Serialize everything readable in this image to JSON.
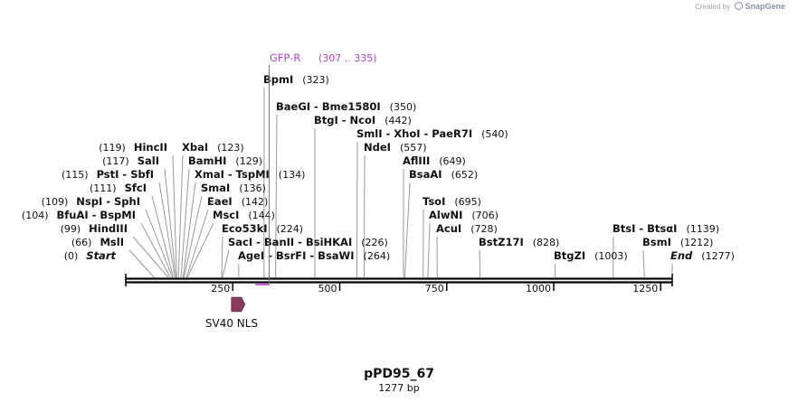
{
  "credit": {
    "prefix": "Created by",
    "brand": "SnapGene"
  },
  "plasmid": {
    "name": "pPD95_67",
    "length_label": "1277 bp",
    "length": 1277
  },
  "ruler": {
    "ticks": [
      "250",
      "500",
      "750",
      "1000",
      "1250"
    ],
    "tick_values": [
      250,
      500,
      750,
      1000,
      1250
    ]
  },
  "feature": {
    "name": "SV40 NLS",
    "start": 249,
    "end": 270,
    "color": "#8c3a60"
  },
  "primer": {
    "name": "GFP-R",
    "range": "(307 .. 335)",
    "start": 307,
    "end": 335,
    "color": "#b442d8"
  },
  "sites": [
    {
      "row": 0,
      "side": "left",
      "text": "Start",
      "pos_label": "(0)",
      "pos": 0,
      "italic": true
    },
    {
      "row": 0,
      "side": "right",
      "text": "AgeI  - BsrFI  - BsaWI",
      "pos_label": "(264)",
      "pos": 264
    },
    {
      "row": 0,
      "side": "right",
      "text": "BtgZI",
      "pos_label": "(1003)",
      "pos": 1003
    },
    {
      "row": 0,
      "side": "right",
      "text": "End",
      "pos_label": "(1277)",
      "pos": 1277,
      "italic": true
    },
    {
      "row": 1,
      "side": "left",
      "text": "MslI",
      "pos_label": "(66)",
      "pos": 66
    },
    {
      "row": 1,
      "side": "right",
      "text": "SacI  - BanII  - BsiHKAI",
      "pos_label": "(226)",
      "pos": 226
    },
    {
      "row": 1,
      "side": "right",
      "text": "BstZ17I",
      "pos_label": "(828)",
      "pos": 828
    },
    {
      "row": 1,
      "side": "right",
      "text": "BsmI",
      "pos_label": "(1212)",
      "pos": 1212
    },
    {
      "row": 2,
      "side": "left",
      "text": "HindIII",
      "pos_label": "(99)",
      "pos": 99
    },
    {
      "row": 2,
      "side": "right",
      "text": "Eco53kI",
      "pos_label": "(224)",
      "pos": 224
    },
    {
      "row": 2,
      "side": "right",
      "text": "AcuI",
      "pos_label": "(728)",
      "pos": 728
    },
    {
      "row": 2,
      "side": "right",
      "text": "BtsI  - BtsαI",
      "pos_label": "(1139)",
      "pos": 1139
    },
    {
      "row": 3,
      "side": "left",
      "text": "BfuAI  - BspMI",
      "pos_label": "(104)",
      "pos": 104
    },
    {
      "row": 3,
      "side": "right",
      "text": "MscI",
      "pos_label": "(144)",
      "pos": 144
    },
    {
      "row": 3,
      "side": "right",
      "text": "AlwNI",
      "pos_label": "(706)",
      "pos": 706
    },
    {
      "row": 4,
      "side": "left",
      "text": "NspI  - SphI",
      "pos_label": "(109)",
      "pos": 109
    },
    {
      "row": 4,
      "side": "right",
      "text": "EaeI",
      "pos_label": "(142)",
      "pos": 142
    },
    {
      "row": 4,
      "side": "right",
      "text": "TsoI",
      "pos_label": "(695)",
      "pos": 695
    },
    {
      "row": 5,
      "side": "left",
      "text": "SfcI",
      "pos_label": "(111)",
      "pos": 111
    },
    {
      "row": 5,
      "side": "right",
      "text": "SmaI",
      "pos_label": "(136)",
      "pos": 136
    },
    {
      "row": 6,
      "side": "left",
      "text": "PstI  - SbfI",
      "pos_label": "(115)",
      "pos": 115
    },
    {
      "row": 6,
      "side": "right",
      "text": "XmaI  - TspMI",
      "pos_label": "(134)",
      "pos": 134
    },
    {
      "row": 6,
      "side": "right",
      "text": "BsaAI",
      "pos_label": "(652)",
      "pos": 652
    },
    {
      "row": 7,
      "side": "left",
      "text": "SalI",
      "pos_label": "(117)",
      "pos": 117
    },
    {
      "row": 7,
      "side": "right",
      "text": "BamHI",
      "pos_label": "(129)",
      "pos": 129
    },
    {
      "row": 7,
      "side": "right",
      "text": "AflIII",
      "pos_label": "(649)",
      "pos": 649
    },
    {
      "row": 8,
      "side": "left",
      "text": "HincII",
      "pos_label": "(119)",
      "pos": 119
    },
    {
      "row": 8,
      "side": "right",
      "text": "XbaI",
      "pos_label": "(123)",
      "pos": 123
    },
    {
      "row": 8,
      "side": "right",
      "text": "NdeI",
      "pos_label": "(557)",
      "pos": 557
    },
    {
      "row": 9,
      "side": "right",
      "text": "SmlI  - XhoI  - PaeR7I",
      "pos_label": "(540)",
      "pos": 540
    },
    {
      "row": 10,
      "side": "right",
      "text": "BtgI  - NcoI",
      "pos_label": "(442)",
      "pos": 442
    },
    {
      "row": 11,
      "side": "right",
      "text": "BaeGI  - Bme1580I",
      "pos_label": "(350)",
      "pos": 350
    },
    {
      "row": 13,
      "side": "right",
      "text": "BpmI",
      "pos_label": "(323)",
      "pos": 323
    }
  ]
}
